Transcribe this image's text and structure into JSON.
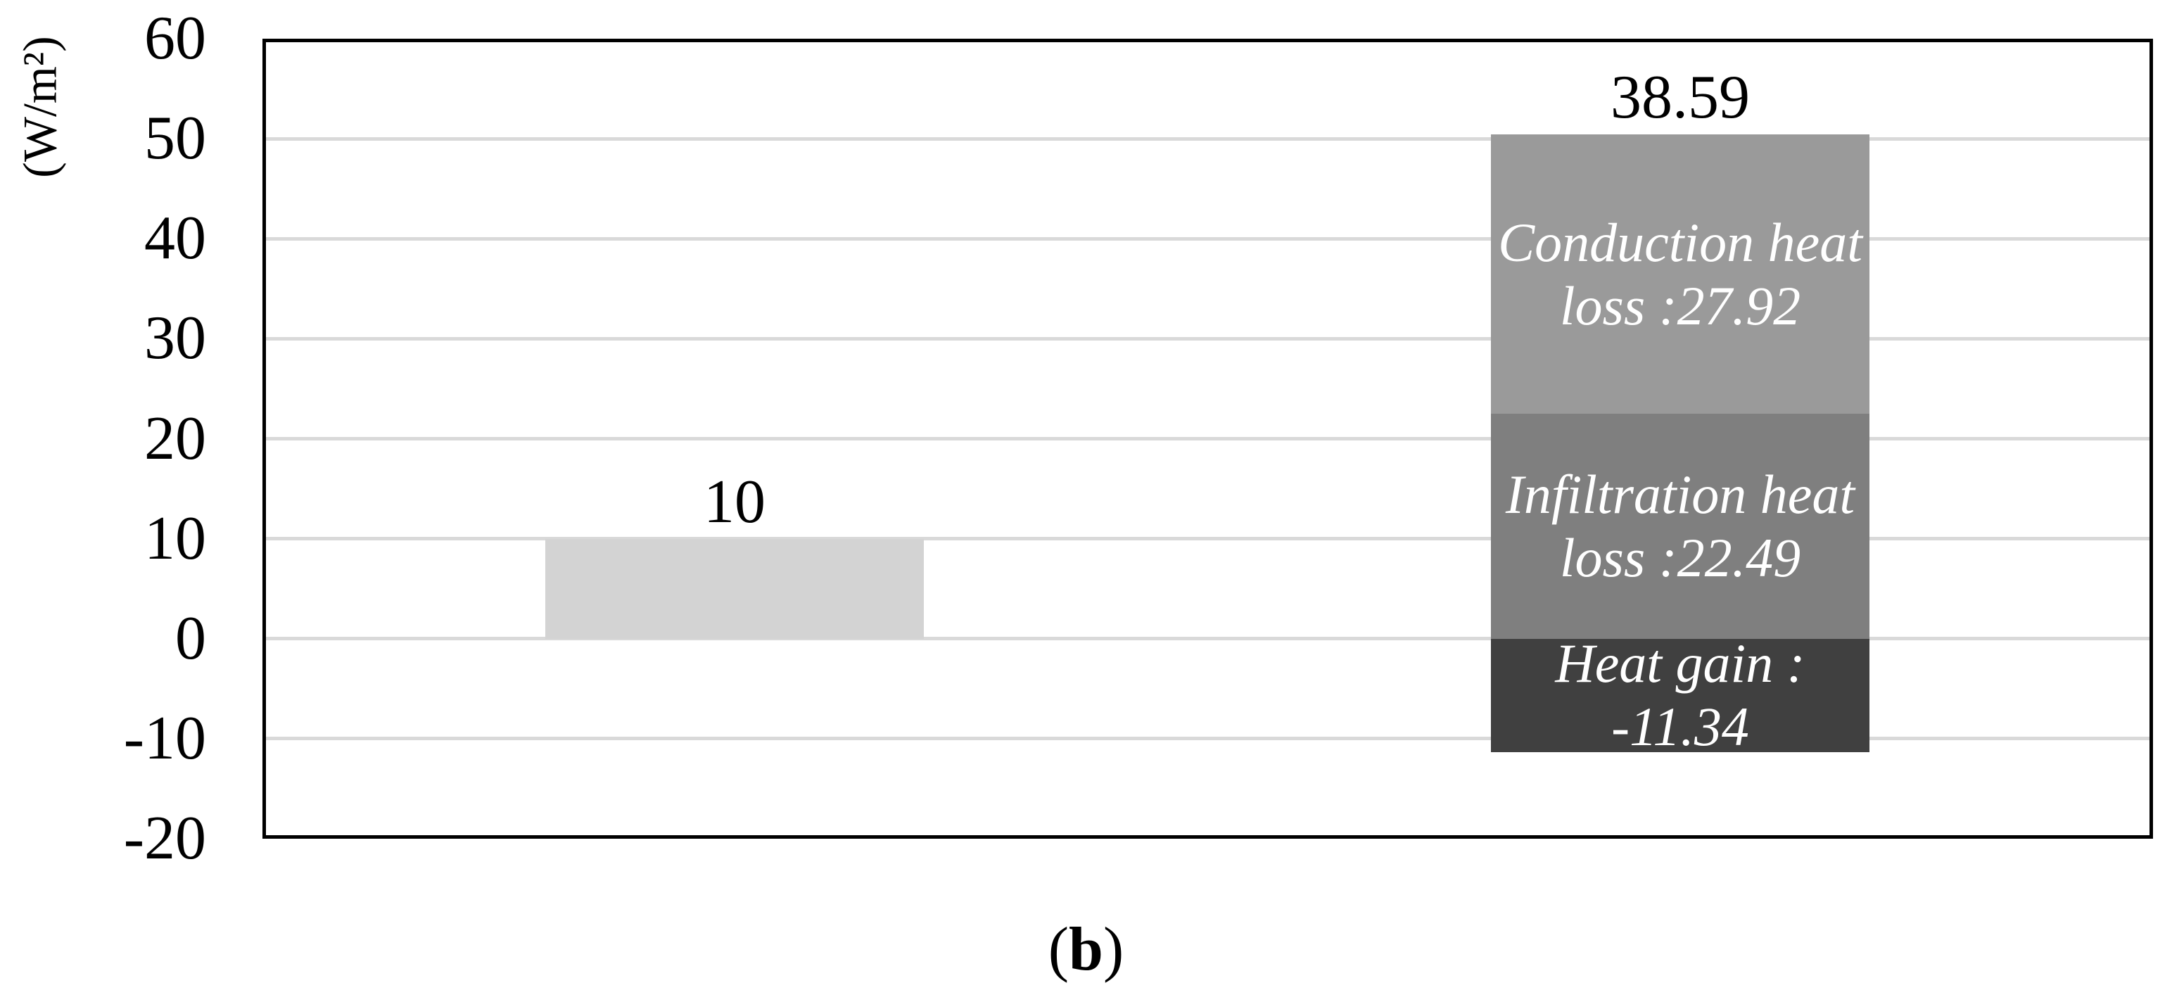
{
  "figure": {
    "caption": {
      "open": "(",
      "letter": "b",
      "close": ")"
    }
  },
  "chart_data": {
    "type": "bar",
    "subtype": "stacked",
    "title": "",
    "xlabel": "",
    "ylabel": "(W/m²)",
    "ylim": [
      -20,
      60
    ],
    "ytick_step": 10,
    "yticks": [
      60,
      50,
      40,
      30,
      20,
      10,
      0,
      -10,
      -20
    ],
    "grid": true,
    "legend": false,
    "categories": [
      "",
      ""
    ],
    "bars": [
      {
        "total_label": "10",
        "segments": [
          {
            "name": "",
            "value": 10,
            "color": "#d3d3d3",
            "text_color": "#ffffff",
            "text_lines": []
          }
        ]
      },
      {
        "total_label": "38.59",
        "segments": [
          {
            "name": "conduction-heat-loss",
            "value": 27.92,
            "color": "#9a9a9a",
            "text_color": "#ffffff",
            "text_lines": [
              "Conduction heat",
              "loss :27.92"
            ]
          },
          {
            "name": "infiltration-heat-loss",
            "value": 22.49,
            "color": "#7f7f7f",
            "text_color": "#ffffff",
            "text_lines": [
              "Infiltration heat",
              "loss :22.49"
            ]
          },
          {
            "name": "heat-gain",
            "value": -11.34,
            "color": "#404040",
            "text_color": "#ffffff",
            "text_lines": [
              "Heat gain :",
              "-11.34"
            ]
          }
        ]
      }
    ],
    "colors": {
      "gridline": "#d9d9d9",
      "axis_border": "#000000",
      "value_text": "#000000",
      "background": "#ffffff"
    }
  }
}
